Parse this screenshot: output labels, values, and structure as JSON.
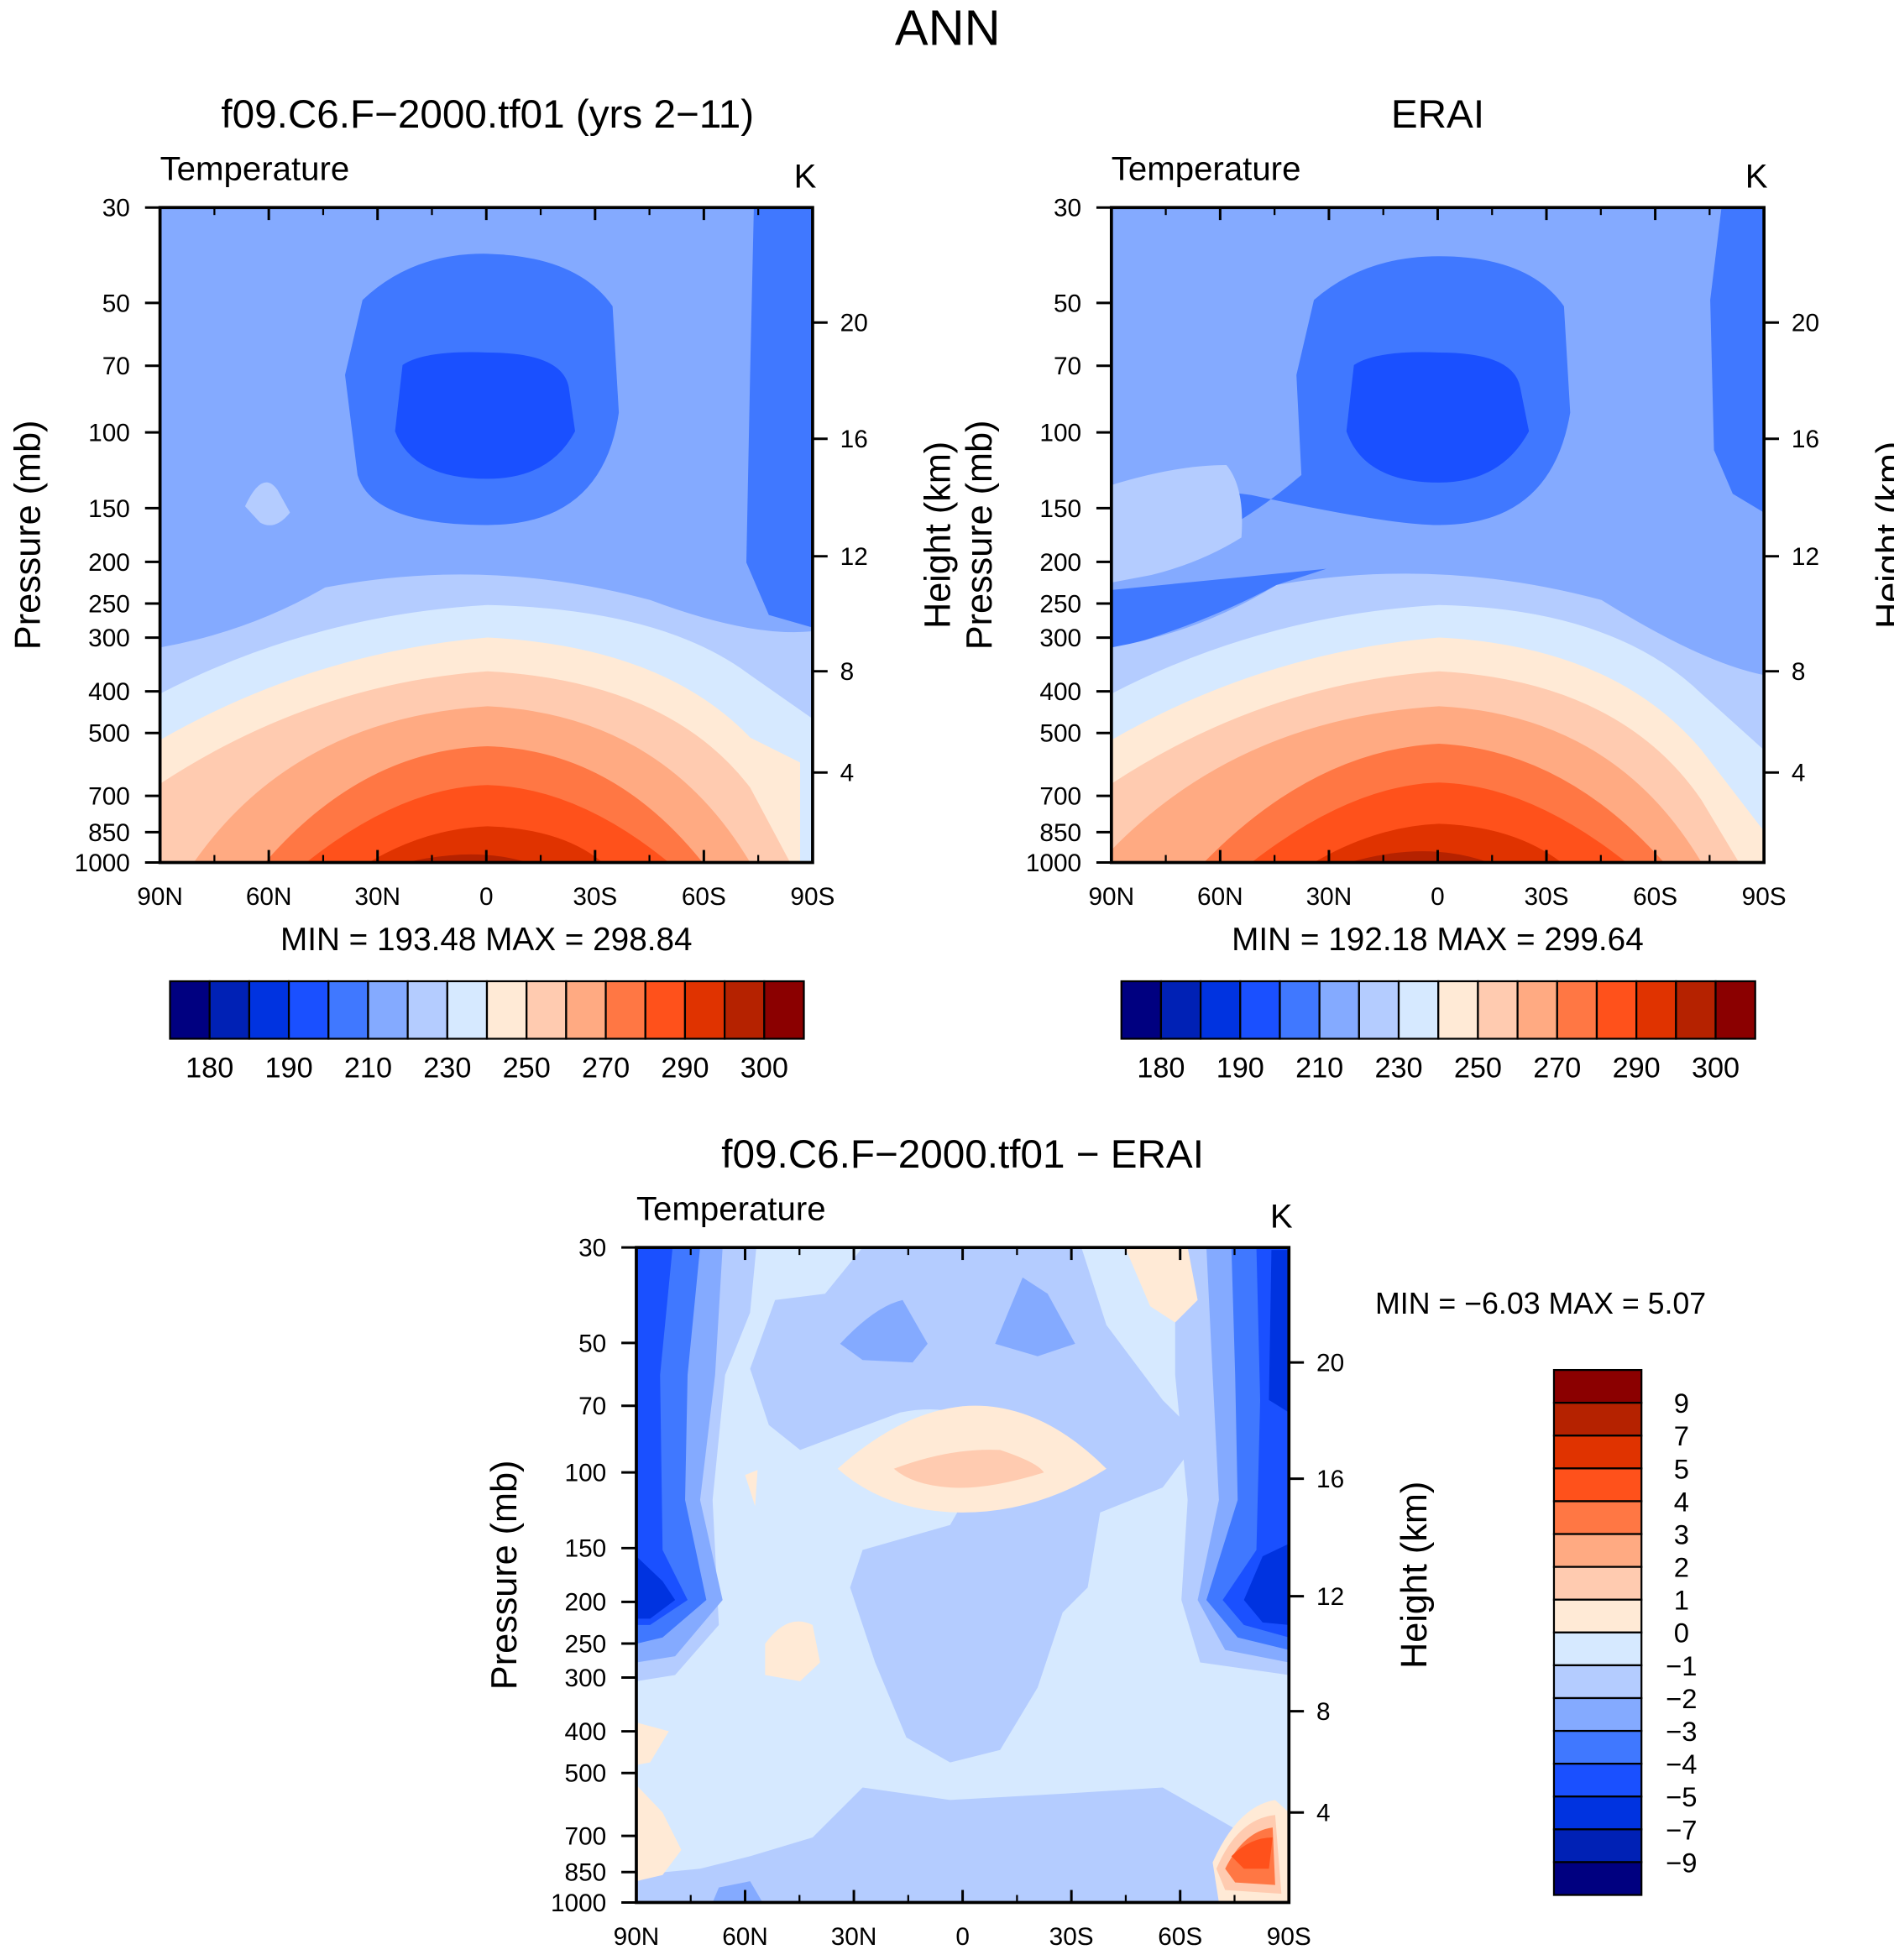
{
  "main_title": "ANN",
  "colors": {
    "temp_levels": [
      "#000080",
      "#0021B5",
      "#0033E0",
      "#1A50FF",
      "#4078FF",
      "#84AAFF",
      "#B4CCFF",
      "#D6E9FF",
      "#FFEAD6",
      "#FFCBB0",
      "#FFAA82",
      "#FF7744",
      "#FF511B",
      "#E03300",
      "#B52200",
      "#8B0000"
    ]
  },
  "chart_data": [
    {
      "type": "heatmap",
      "title": "f09.C6.F−2000.tf01 (yrs 2−11)",
      "left_label": "Temperature",
      "units": "K",
      "xlabel": "",
      "ylabel": "Pressure (mb)",
      "ylabel_right": "Height (km)",
      "x_ticks": [
        "90N",
        "60N",
        "30N",
        "0",
        "30S",
        "60S",
        "90S"
      ],
      "y_ticks": [
        "30",
        "50",
        "70",
        "100",
        "150",
        "200",
        "250",
        "300",
        "400",
        "500",
        "700",
        "850",
        "1000"
      ],
      "y_ticks_right": [
        "20",
        "16",
        "12",
        "8",
        "4"
      ],
      "stats": "MIN = 193.48   MAX = 298.84",
      "min": 193.48,
      "max": 298.84,
      "colorbar_labels": [
        "180",
        "190",
        "210",
        "230",
        "250",
        "270",
        "290",
        "300"
      ]
    },
    {
      "type": "heatmap",
      "title": "ERAI",
      "left_label": "Temperature",
      "units": "K",
      "ylabel": "Pressure (mb)",
      "ylabel_right": "Height (km)",
      "x_ticks": [
        "90N",
        "60N",
        "30N",
        "0",
        "30S",
        "60S",
        "90S"
      ],
      "y_ticks": [
        "30",
        "50",
        "70",
        "100",
        "150",
        "200",
        "250",
        "300",
        "400",
        "500",
        "700",
        "850",
        "1000"
      ],
      "y_ticks_right": [
        "20",
        "16",
        "12",
        "8",
        "4"
      ],
      "stats": "MIN = 192.18   MAX = 299.64",
      "min": 192.18,
      "max": 299.64,
      "colorbar_labels": [
        "180",
        "190",
        "210",
        "230",
        "250",
        "270",
        "290",
        "300"
      ]
    },
    {
      "type": "heatmap",
      "title": "f09.C6.F−2000.tf01 − ERAI",
      "left_label": "Temperature",
      "units": "K",
      "ylabel": "Pressure (mb)",
      "ylabel_right": "Height (km)",
      "x_ticks": [
        "90N",
        "60N",
        "30N",
        "0",
        "30S",
        "60S",
        "90S"
      ],
      "y_ticks": [
        "30",
        "50",
        "70",
        "100",
        "150",
        "200",
        "250",
        "300",
        "400",
        "500",
        "700",
        "850",
        "1000"
      ],
      "y_ticks_right": [
        "20",
        "16",
        "12",
        "8",
        "4"
      ],
      "stats": "MIN =   −6.03   MAX =     5.07",
      "min": -6.03,
      "max": 5.07,
      "colorbar_labels": [
        "9",
        "7",
        "5",
        "4",
        "3",
        "2",
        "1",
        "0",
        "−1",
        "−2",
        "−3",
        "−4",
        "−5",
        "−7",
        "−9"
      ]
    }
  ]
}
